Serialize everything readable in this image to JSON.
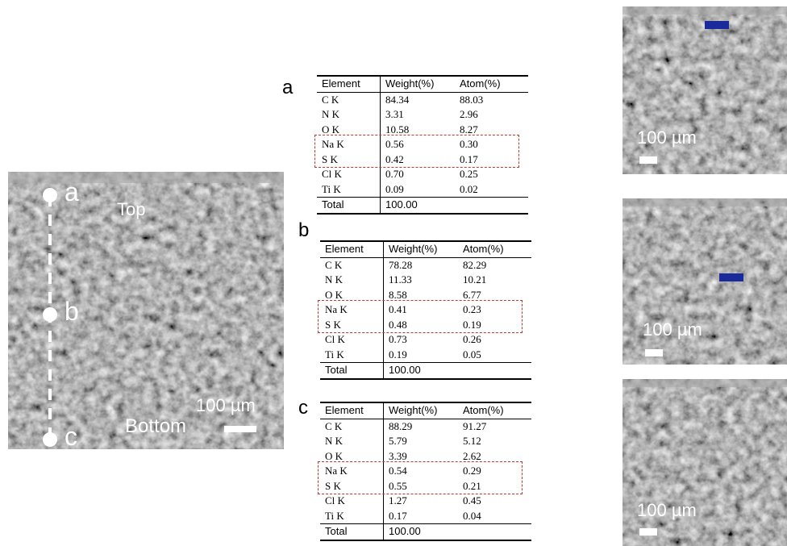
{
  "figure": {
    "main_image": {
      "points": [
        "a",
        "b",
        "c"
      ],
      "top": "Top",
      "bottom": "Bottom",
      "scale": "100 µm"
    },
    "tables": [
      {
        "label": "a",
        "header": [
          "Element",
          "Weight(%)",
          "Atom(%)"
        ],
        "rows": [
          [
            "C K",
            "84.34",
            "88.03"
          ],
          [
            "N K",
            "3.31",
            "2.96"
          ],
          [
            "O K",
            "10.58",
            "8.27"
          ],
          [
            "Na K",
            "0.56",
            "0.30"
          ],
          [
            "S K",
            "0.42",
            "0.17"
          ],
          [
            "Cl K",
            "0.70",
            "0.25"
          ],
          [
            "Ti K",
            "0.09",
            "0.02"
          ],
          [
            "Total",
            "100.00",
            ""
          ]
        ]
      },
      {
        "label": "b",
        "header": [
          "Element",
          "Weight(%)",
          "Atom(%)"
        ],
        "rows": [
          [
            "C K",
            "78.28",
            "82.29"
          ],
          [
            "N K",
            "11.33",
            "10.21"
          ],
          [
            "O K",
            "8.58",
            "6.77"
          ],
          [
            "Na K",
            "0.41",
            "0.23"
          ],
          [
            "S K",
            "0.48",
            "0.19"
          ],
          [
            "Cl K",
            "0.73",
            "0.26"
          ],
          [
            "Ti K",
            "0.19",
            "0.05"
          ],
          [
            "Total",
            "100.00",
            ""
          ]
        ]
      },
      {
        "label": "c",
        "header": [
          "Element",
          "Weight(%)",
          "Atom(%)"
        ],
        "rows": [
          [
            "C K",
            "88.29",
            "91.27"
          ],
          [
            "N K",
            "5.79",
            "5.12"
          ],
          [
            "O K",
            "3.39",
            "2.62"
          ],
          [
            "Na K",
            "0.54",
            "0.29"
          ],
          [
            "S K",
            "0.55",
            "0.21"
          ],
          [
            "Cl K",
            "1.27",
            "0.45"
          ],
          [
            "Ti K",
            "0.17",
            "0.04"
          ],
          [
            "Total",
            "100.00",
            ""
          ]
        ]
      }
    ],
    "side_images": [
      {
        "scale": "100 µm"
      },
      {
        "scale": "100 µm"
      },
      {
        "scale": "100 µm"
      }
    ]
  }
}
